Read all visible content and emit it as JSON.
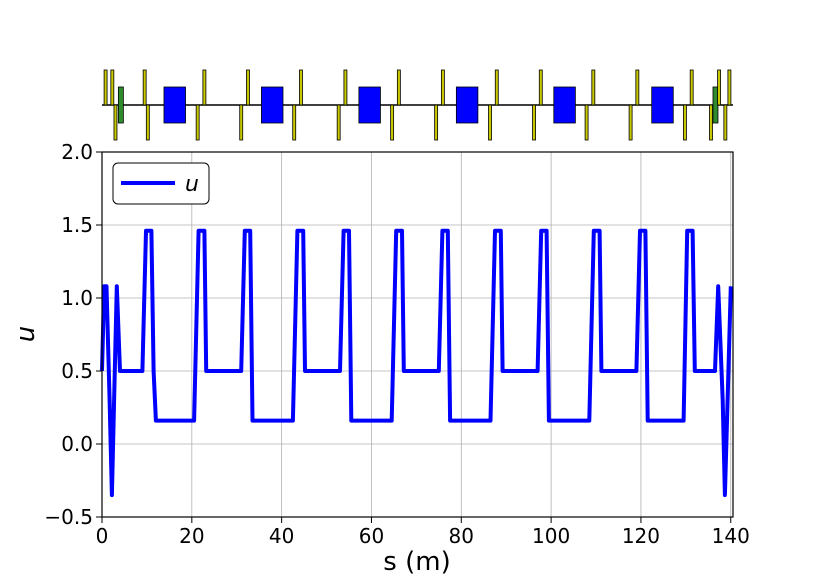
{
  "chart_data": {
    "type": "line",
    "xlabel": "s (m)",
    "ylabel": "u",
    "xlim": [
      0,
      140.5
    ],
    "ylim": [
      -0.5,
      2.0
    ],
    "x_ticks": [
      0,
      20,
      40,
      60,
      80,
      100,
      120,
      140
    ],
    "x_tick_labels": [
      "0",
      "20",
      "40",
      "60",
      "80",
      "100",
      "120",
      "140"
    ],
    "y_ticks": [
      -0.5,
      0.0,
      0.5,
      1.0,
      1.5,
      2.0
    ],
    "y_tick_labels": [
      "−0.5",
      "0.0",
      "0.5",
      "1.0",
      "1.5",
      "2.0"
    ],
    "grid": true,
    "legend": {
      "position": "top-left",
      "entries": [
        "u"
      ]
    },
    "series": [
      {
        "name": "u",
        "color": "#0000ff",
        "x": [
          0,
          0.5,
          1.0,
          1.7,
          2.2,
          2.7,
          3.3,
          4.0,
          4.5,
          9.0,
          9.8,
          11.0,
          11.5,
          12.0,
          20.5,
          21.5,
          22.8,
          23.2,
          31.0,
          31.8,
          33.0,
          33.5,
          42.5,
          43.5,
          44.8,
          45.2,
          53.0,
          53.8,
          55.0,
          55.5,
          64.5,
          65.5,
          66.8,
          67.2,
          75.0,
          75.8,
          77.0,
          77.5,
          86.5,
          87.5,
          88.8,
          89.2,
          97.0,
          97.8,
          99.0,
          99.5,
          108.5,
          109.5,
          110.8,
          111.2,
          119.0,
          119.8,
          121.0,
          121.5,
          129.5,
          130.3,
          131.5,
          132.0,
          136.0,
          136.5,
          137.2,
          138.2,
          138.7,
          139.3,
          140.0
        ],
        "y": [
          0.5,
          1.08,
          1.08,
          0.3,
          -0.35,
          0.3,
          1.08,
          0.5,
          0.5,
          0.5,
          1.46,
          1.46,
          0.5,
          0.16,
          0.16,
          1.46,
          1.46,
          0.5,
          0.5,
          1.46,
          1.46,
          0.16,
          0.16,
          1.46,
          1.46,
          0.5,
          0.5,
          1.46,
          1.46,
          0.16,
          0.16,
          1.46,
          1.46,
          0.5,
          0.5,
          1.46,
          1.46,
          0.16,
          0.16,
          1.46,
          1.46,
          0.5,
          0.5,
          1.46,
          1.46,
          0.16,
          0.16,
          1.46,
          1.46,
          0.5,
          0.5,
          1.46,
          1.46,
          0.16,
          0.16,
          1.46,
          1.46,
          0.5,
          0.5,
          0.5,
          1.08,
          0.3,
          -0.35,
          0.3,
          1.08
        ]
      }
    ]
  },
  "lattice": {
    "baseline_color": "#000000",
    "elements": [
      {
        "type": "quad-focusing",
        "s": 0.8,
        "color": "#c8c800"
      },
      {
        "type": "quad-focusing",
        "s": 2.3,
        "color": "#c8c800"
      },
      {
        "type": "quad-defocusing",
        "s": 3.0,
        "color": "#c8c800"
      },
      {
        "type": "sextupole",
        "s": 4.2,
        "color": "#2e8b2e"
      },
      {
        "type": "quad-focusing",
        "s": 9.5,
        "color": "#c8c800"
      },
      {
        "type": "quad-defocusing",
        "s": 10.2,
        "color": "#c8c800"
      },
      {
        "type": "dipole",
        "s": 16.2,
        "length": 4.8,
        "color": "#0000ff"
      },
      {
        "type": "quad-defocusing",
        "s": 21.3,
        "color": "#c8c800"
      },
      {
        "type": "quad-focusing",
        "s": 22.8,
        "color": "#c8c800"
      },
      {
        "type": "quad-defocusing",
        "s": 31.0,
        "color": "#c8c800"
      },
      {
        "type": "quad-focusing",
        "s": 32.5,
        "color": "#c8c800"
      },
      {
        "type": "dipole",
        "s": 37.9,
        "length": 4.8,
        "color": "#0000ff"
      },
      {
        "type": "quad-defocusing",
        "s": 42.8,
        "color": "#c8c800"
      },
      {
        "type": "quad-focusing",
        "s": 44.3,
        "color": "#c8c800"
      },
      {
        "type": "quad-defocusing",
        "s": 52.7,
        "color": "#c8c800"
      },
      {
        "type": "quad-focusing",
        "s": 54.2,
        "color": "#c8c800"
      },
      {
        "type": "dipole",
        "s": 59.6,
        "length": 4.8,
        "color": "#0000ff"
      },
      {
        "type": "quad-defocusing",
        "s": 64.6,
        "color": "#c8c800"
      },
      {
        "type": "quad-focusing",
        "s": 66.1,
        "color": "#c8c800"
      },
      {
        "type": "quad-defocusing",
        "s": 74.4,
        "color": "#c8c800"
      },
      {
        "type": "quad-focusing",
        "s": 75.9,
        "color": "#c8c800"
      },
      {
        "type": "dipole",
        "s": 81.3,
        "length": 4.8,
        "color": "#0000ff"
      },
      {
        "type": "quad-defocusing",
        "s": 86.4,
        "color": "#c8c800"
      },
      {
        "type": "quad-focusing",
        "s": 87.9,
        "color": "#c8c800"
      },
      {
        "type": "quad-defocusing",
        "s": 96.2,
        "color": "#c8c800"
      },
      {
        "type": "quad-focusing",
        "s": 97.7,
        "color": "#c8c800"
      },
      {
        "type": "dipole",
        "s": 103.0,
        "length": 4.8,
        "color": "#0000ff"
      },
      {
        "type": "quad-defocusing",
        "s": 107.9,
        "color": "#c8c800"
      },
      {
        "type": "quad-focusing",
        "s": 109.4,
        "color": "#c8c800"
      },
      {
        "type": "quad-defocusing",
        "s": 117.7,
        "color": "#c8c800"
      },
      {
        "type": "quad-focusing",
        "s": 119.2,
        "color": "#c8c800"
      },
      {
        "type": "dipole",
        "s": 124.8,
        "length": 4.8,
        "color": "#0000ff"
      },
      {
        "type": "quad-defocusing",
        "s": 129.8,
        "color": "#c8c800"
      },
      {
        "type": "quad-focusing",
        "s": 131.3,
        "color": "#c8c800"
      },
      {
        "type": "quad-defocusing",
        "s": 135.6,
        "color": "#c8c800"
      },
      {
        "type": "sextupole",
        "s": 136.6,
        "color": "#2e8b2e"
      },
      {
        "type": "quad-focusing",
        "s": 137.4,
        "color": "#c8c800"
      },
      {
        "type": "quad-defocusing",
        "s": 138.8,
        "color": "#c8c800"
      },
      {
        "type": "quad-focusing",
        "s": 139.7,
        "color": "#c8c800"
      }
    ]
  }
}
